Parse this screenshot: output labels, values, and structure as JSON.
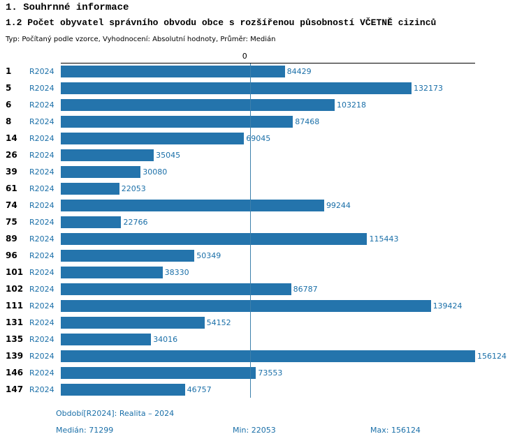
{
  "header": {
    "title": "1. Souhrnné informace",
    "subtitle": "1.2 Počet obyvatel správního obvodu obce s rozšířenou působností VČETNĚ cizinců",
    "meta": "Typ: Počítaný podle vzorce, Vyhodnocení: Absolutní hodnoty, Průměr: Medián"
  },
  "chart_data": {
    "type": "bar",
    "orientation": "horizontal",
    "series_label": "R2024",
    "categories": [
      "1",
      "5",
      "6",
      "8",
      "14",
      "26",
      "39",
      "61",
      "74",
      "75",
      "89",
      "96",
      "101",
      "102",
      "111",
      "131",
      "135",
      "139",
      "146",
      "147"
    ],
    "values": [
      84429,
      132173,
      103218,
      87468,
      69045,
      35045,
      30080,
      22053,
      99244,
      22766,
      115443,
      50349,
      38330,
      86787,
      139424,
      54152,
      34016,
      156124,
      73553,
      46757
    ],
    "xlim": [
      0,
      156124
    ],
    "axis_zero_label": "0",
    "median_value": 71299,
    "grid": "single-median-line",
    "legend_position": "none",
    "bar_color": "#2474ac",
    "accent_text_color": "#1a6fa8",
    "median_line_color": "#3c80ac"
  },
  "footer": {
    "period": "Období[R2024]: Realita – 2024",
    "median": "Medián: 71299",
    "min": "Min: 22053",
    "max": "Max: 156124"
  }
}
